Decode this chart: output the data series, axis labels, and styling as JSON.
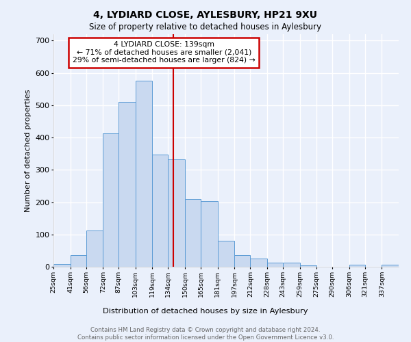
{
  "title1": "4, LYDIARD CLOSE, AYLESBURY, HP21 9XU",
  "title2": "Size of property relative to detached houses in Aylesbury",
  "xlabel": "Distribution of detached houses by size in Aylesbury",
  "ylabel": "Number of detached properties",
  "bar_color": "#c9d9f0",
  "bar_edge_color": "#5b9bd5",
  "background_color": "#eaf0fb",
  "grid_color": "#ffffff",
  "vline_value": 139,
  "vline_color": "#cc0000",
  "annotation_line1": "4 LYDIARD CLOSE: 139sqm",
  "annotation_line2": "← 71% of detached houses are smaller (2,041)",
  "annotation_line3": "29% of semi-detached houses are larger (824) →",
  "annotation_box_color": "#ffffff",
  "annotation_box_edge": "#cc0000",
  "footer1": "Contains HM Land Registry data © Crown copyright and database right 2024.",
  "footer2": "Contains public sector information licensed under the Open Government Licence v3.0.",
  "bin_labels": [
    "25sqm",
    "41sqm",
    "56sqm",
    "72sqm",
    "87sqm",
    "103sqm",
    "119sqm",
    "134sqm",
    "150sqm",
    "165sqm",
    "181sqm",
    "197sqm",
    "212sqm",
    "228sqm",
    "243sqm",
    "259sqm",
    "275sqm",
    "290sqm",
    "306sqm",
    "321sqm",
    "337sqm"
  ],
  "bin_edges": [
    25,
    41,
    56,
    72,
    87,
    103,
    119,
    134,
    150,
    165,
    181,
    197,
    212,
    228,
    243,
    259,
    275,
    290,
    306,
    321,
    337,
    353
  ],
  "bar_heights": [
    8,
    37,
    113,
    413,
    510,
    575,
    347,
    333,
    210,
    204,
    80,
    35,
    25,
    12,
    12,
    5,
    0,
    0,
    7,
    0,
    7
  ],
  "ylim": [
    0,
    720
  ],
  "yticks": [
    0,
    100,
    200,
    300,
    400,
    500,
    600,
    700
  ]
}
